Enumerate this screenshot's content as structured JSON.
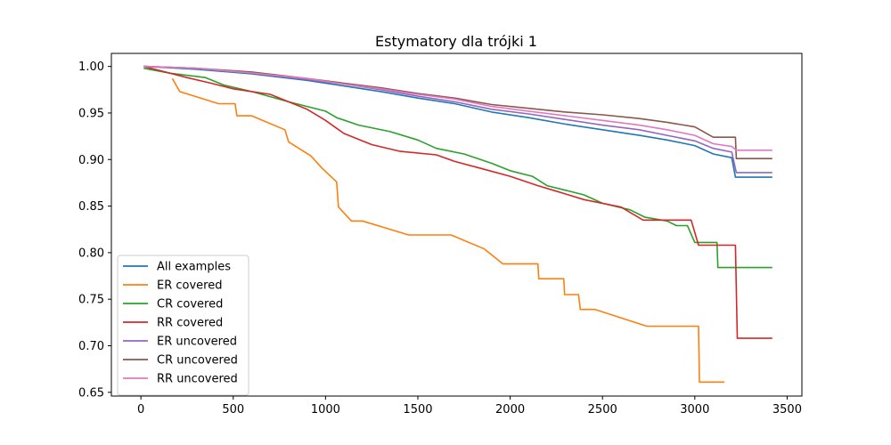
{
  "chart_data": {
    "type": "line",
    "title": "Estymatory dla trójki 1",
    "xlabel": "",
    "ylabel": "",
    "xlim": [
      -160,
      3580
    ],
    "ylim": [
      0.646,
      1.014
    ],
    "xticks": [
      0,
      500,
      1000,
      1500,
      2000,
      2500,
      3000,
      3500
    ],
    "yticks": [
      0.65,
      0.7,
      0.75,
      0.8,
      0.85,
      0.9,
      0.95,
      1.0
    ],
    "xtick_labels": [
      "0",
      "500",
      "1000",
      "1500",
      "2000",
      "2500",
      "3000",
      "3500"
    ],
    "ytick_labels": [
      "0.65",
      "0.70",
      "0.75",
      "0.80",
      "0.85",
      "0.90",
      "0.95",
      "1.00"
    ],
    "grid": false,
    "legend_position": "lower-left",
    "series": [
      {
        "name": "All examples",
        "color": "#1f77b4",
        "points": [
          [
            15,
            1.0
          ],
          [
            300,
            0.997
          ],
          [
            600,
            0.992
          ],
          [
            900,
            0.985
          ],
          [
            1100,
            0.979
          ],
          [
            1300,
            0.973
          ],
          [
            1500,
            0.966
          ],
          [
            1700,
            0.96
          ],
          [
            1900,
            0.951
          ],
          [
            2100,
            0.945
          ],
          [
            2300,
            0.938
          ],
          [
            2500,
            0.932
          ],
          [
            2700,
            0.926
          ],
          [
            2850,
            0.921
          ],
          [
            3000,
            0.915
          ],
          [
            3100,
            0.906
          ],
          [
            3200,
            0.902
          ],
          [
            3220,
            0.881
          ],
          [
            3420,
            0.881
          ]
        ]
      },
      {
        "name": "ER covered",
        "color": "#ff7f0e",
        "points": [
          [
            170,
            0.987
          ],
          [
            210,
            0.973
          ],
          [
            420,
            0.96
          ],
          [
            510,
            0.96
          ],
          [
            520,
            0.947
          ],
          [
            600,
            0.947
          ],
          [
            780,
            0.932
          ],
          [
            800,
            0.919
          ],
          [
            920,
            0.904
          ],
          [
            980,
            0.891
          ],
          [
            1060,
            0.876
          ],
          [
            1070,
            0.849
          ],
          [
            1140,
            0.834
          ],
          [
            1200,
            0.834
          ],
          [
            1450,
            0.819
          ],
          [
            1680,
            0.819
          ],
          [
            1860,
            0.804
          ],
          [
            1960,
            0.788
          ],
          [
            2150,
            0.788
          ],
          [
            2155,
            0.772
          ],
          [
            2290,
            0.772
          ],
          [
            2295,
            0.755
          ],
          [
            2370,
            0.755
          ],
          [
            2380,
            0.739
          ],
          [
            2460,
            0.739
          ],
          [
            2740,
            0.721
          ],
          [
            3020,
            0.721
          ],
          [
            3025,
            0.661
          ],
          [
            3160,
            0.661
          ]
        ]
      },
      {
        "name": "CR covered",
        "color": "#2ca02c",
        "points": [
          [
            15,
            0.998
          ],
          [
            150,
            0.993
          ],
          [
            350,
            0.988
          ],
          [
            450,
            0.98
          ],
          [
            600,
            0.973
          ],
          [
            800,
            0.962
          ],
          [
            1000,
            0.952
          ],
          [
            1060,
            0.945
          ],
          [
            1180,
            0.937
          ],
          [
            1350,
            0.93
          ],
          [
            1500,
            0.921
          ],
          [
            1600,
            0.912
          ],
          [
            1750,
            0.906
          ],
          [
            1900,
            0.896
          ],
          [
            2000,
            0.888
          ],
          [
            2120,
            0.882
          ],
          [
            2200,
            0.872
          ],
          [
            2400,
            0.862
          ],
          [
            2500,
            0.853
          ],
          [
            2650,
            0.846
          ],
          [
            2730,
            0.838
          ],
          [
            2850,
            0.834
          ],
          [
            2900,
            0.829
          ],
          [
            2960,
            0.829
          ],
          [
            3000,
            0.811
          ],
          [
            3120,
            0.811
          ],
          [
            3125,
            0.784
          ],
          [
            3420,
            0.784
          ]
        ]
      },
      {
        "name": "RR covered",
        "color": "#d62728",
        "points": [
          [
            15,
            1.0
          ],
          [
            250,
            0.988
          ],
          [
            380,
            0.982
          ],
          [
            500,
            0.976
          ],
          [
            700,
            0.97
          ],
          [
            800,
            0.962
          ],
          [
            900,
            0.954
          ],
          [
            1000,
            0.942
          ],
          [
            1100,
            0.928
          ],
          [
            1250,
            0.916
          ],
          [
            1400,
            0.909
          ],
          [
            1600,
            0.905
          ],
          [
            1700,
            0.898
          ],
          [
            1850,
            0.89
          ],
          [
            2000,
            0.882
          ],
          [
            2150,
            0.872
          ],
          [
            2250,
            0.866
          ],
          [
            2400,
            0.857
          ],
          [
            2600,
            0.849
          ],
          [
            2720,
            0.835
          ],
          [
            2980,
            0.835
          ],
          [
            3020,
            0.808
          ],
          [
            3220,
            0.808
          ],
          [
            3230,
            0.708
          ],
          [
            3420,
            0.708
          ]
        ]
      },
      {
        "name": "ER uncovered",
        "color": "#9467bd",
        "points": [
          [
            15,
            1.0
          ],
          [
            300,
            0.998
          ],
          [
            600,
            0.993
          ],
          [
            900,
            0.986
          ],
          [
            1100,
            0.981
          ],
          [
            1300,
            0.975
          ],
          [
            1500,
            0.968
          ],
          [
            1700,
            0.962
          ],
          [
            1900,
            0.954
          ],
          [
            2100,
            0.949
          ],
          [
            2300,
            0.943
          ],
          [
            2500,
            0.937
          ],
          [
            2700,
            0.932
          ],
          [
            2850,
            0.926
          ],
          [
            3000,
            0.92
          ],
          [
            3100,
            0.912
          ],
          [
            3200,
            0.908
          ],
          [
            3225,
            0.886
          ],
          [
            3420,
            0.886
          ]
        ]
      },
      {
        "name": "CR uncovered",
        "color": "#8c564b",
        "points": [
          [
            15,
            1.0
          ],
          [
            300,
            0.998
          ],
          [
            600,
            0.994
          ],
          [
            900,
            0.987
          ],
          [
            1100,
            0.982
          ],
          [
            1300,
            0.977
          ],
          [
            1500,
            0.971
          ],
          [
            1700,
            0.966
          ],
          [
            1900,
            0.959
          ],
          [
            2100,
            0.955
          ],
          [
            2300,
            0.951
          ],
          [
            2500,
            0.948
          ],
          [
            2700,
            0.944
          ],
          [
            2850,
            0.94
          ],
          [
            3000,
            0.935
          ],
          [
            3100,
            0.924
          ],
          [
            3220,
            0.924
          ],
          [
            3225,
            0.901
          ],
          [
            3420,
            0.901
          ]
        ]
      },
      {
        "name": "RR uncovered",
        "color": "#e377c2",
        "points": [
          [
            15,
            1.0
          ],
          [
            300,
            0.998
          ],
          [
            600,
            0.993
          ],
          [
            900,
            0.987
          ],
          [
            1100,
            0.981
          ],
          [
            1300,
            0.976
          ],
          [
            1500,
            0.97
          ],
          [
            1700,
            0.965
          ],
          [
            1900,
            0.957
          ],
          [
            2100,
            0.952
          ],
          [
            2300,
            0.947
          ],
          [
            2500,
            0.942
          ],
          [
            2700,
            0.937
          ],
          [
            2850,
            0.932
          ],
          [
            3000,
            0.926
          ],
          [
            3100,
            0.917
          ],
          [
            3200,
            0.914
          ],
          [
            3225,
            0.91
          ],
          [
            3420,
            0.91
          ]
        ]
      }
    ]
  }
}
